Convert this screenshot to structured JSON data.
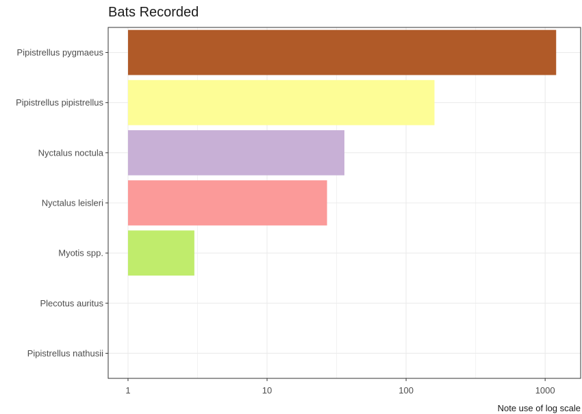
{
  "chart_data": {
    "type": "bar",
    "orientation": "horizontal",
    "title": "Bats Recorded",
    "xlabel": "Note use of log scale",
    "ylabel": "",
    "x_scale": "log10",
    "xlim": [
      0.72,
      1800
    ],
    "x_ticks": [
      1,
      10,
      100,
      1000
    ],
    "x_tick_labels": [
      "1",
      "10",
      "100",
      "1000"
    ],
    "grid": true,
    "categories": [
      "Pipistrellus pygmaeus",
      "Pipistrellus pipistrellus",
      "Nyctalus noctula",
      "Nyctalus leisleri",
      "Myotis spp.",
      "Plecotus auritus",
      "Pipistrellus nathusii"
    ],
    "values": [
      1200,
      160,
      36,
      27,
      3,
      1,
      1
    ],
    "colors": [
      "#b05a28",
      "#fdfd96",
      "#c8b0d6",
      "#fb9a99",
      "#c0ec6c",
      "#e0e0e0",
      "#d9d9d9"
    ]
  }
}
